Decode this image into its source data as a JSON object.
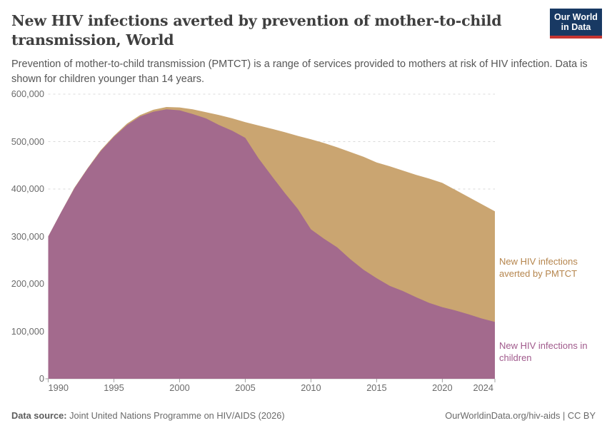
{
  "header": {
    "title": "New HIV infections averted by prevention of mother-to-child transmission, World",
    "subtitle": "Prevention of mother-to-child transmission (PMTCT) is a range of services provided to mothers at risk of HIV infection. Data is shown for children younger than 14 years.",
    "logo": {
      "line1": "Our World",
      "line2": "in Data"
    },
    "logo_colors": {
      "background": "#183963",
      "stripe": "#c53531"
    }
  },
  "chart_data": {
    "type": "area",
    "stacked": true,
    "title": "New HIV infections averted by prevention of mother-to-child transmission, World",
    "xlabel": "",
    "ylabel": "",
    "x": [
      1990,
      1991,
      1992,
      1993,
      1994,
      1995,
      1996,
      1997,
      1998,
      1999,
      2000,
      2001,
      2002,
      2003,
      2004,
      2005,
      2006,
      2007,
      2008,
      2009,
      2010,
      2011,
      2012,
      2013,
      2014,
      2015,
      2016,
      2017,
      2018,
      2019,
      2020,
      2021,
      2022,
      2023,
      2024
    ],
    "series": [
      {
        "name": "New HIV infections in children",
        "color": "#a36a8d",
        "label_color": "#a05a8c",
        "values": [
          300000,
          352000,
          402000,
          443000,
          480000,
          510000,
          535000,
          553000,
          563000,
          568000,
          566000,
          558000,
          549000,
          535000,
          523000,
          508000,
          465000,
          428000,
          392000,
          358000,
          315000,
          295000,
          277000,
          252000,
          230000,
          212000,
          196000,
          185000,
          172000,
          160000,
          151000,
          144000,
          136000,
          127000,
          120000
        ]
      },
      {
        "name": "New HIV infections averted by PMTCT",
        "color": "#caa571",
        "label_color": "#b5854d",
        "values": [
          0,
          0,
          1000,
          1000,
          2000,
          2000,
          3000,
          3000,
          4000,
          5000,
          6000,
          10000,
          13000,
          21000,
          26000,
          33000,
          69000,
          99000,
          128000,
          154000,
          190000,
          202000,
          211000,
          226000,
          238000,
          244000,
          252000,
          254000,
          258000,
          262000,
          262000,
          254000,
          247000,
          241000,
          233000
        ]
      }
    ],
    "xlim": [
      1990,
      2024
    ],
    "ylim": [
      0,
      600000
    ],
    "y_ticks": [
      0,
      100000,
      200000,
      300000,
      400000,
      500000,
      600000
    ],
    "y_tick_labels": [
      "0",
      "100,000",
      "200,000",
      "300,000",
      "400,000",
      "500,000",
      "600,000"
    ],
    "x_ticks": [
      1990,
      1995,
      2000,
      2005,
      2010,
      2015,
      2020,
      2024
    ],
    "x_tick_labels": [
      "1990",
      "1995",
      "2000",
      "2005",
      "2010",
      "2015",
      "2020",
      "2024"
    ],
    "grid": "horizontal-dashed",
    "legend_position": "right-annotations"
  },
  "annotations": {
    "averted_label": "New HIV infections averted by PMTCT",
    "children_label": "New HIV infections in children"
  },
  "footer": {
    "source_label": "Data source:",
    "source_text": " Joint United Nations Programme on HIV/AIDS (2026)",
    "rights": "OurWorldinData.org/hiv-aids | CC BY"
  }
}
